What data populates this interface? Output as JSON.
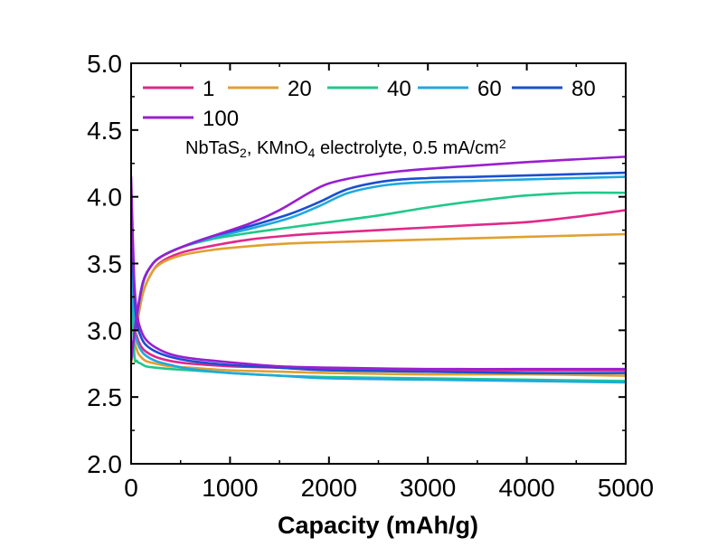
{
  "chart_data": {
    "type": "line",
    "title": "",
    "xlabel": "Capacity (mAh/g)",
    "ylabel": "",
    "xlim": [
      0,
      5000
    ],
    "ylim": [
      2.0,
      5.0
    ],
    "xticks": [
      0,
      1000,
      2000,
      3000,
      4000,
      5000
    ],
    "xtick_labels": [
      "0",
      "1000",
      "2000",
      "3000",
      "4000",
      "5000"
    ],
    "yticks": [
      2.0,
      2.5,
      3.0,
      3.5,
      4.0,
      4.5,
      5.0
    ],
    "ytick_labels": [
      "2.0",
      "2.5",
      "3.0",
      "3.5",
      "4.0",
      "4.5",
      "5.0"
    ],
    "grid": false,
    "legend_position": "top-left",
    "annotation": {
      "parts": [
        {
          "text": "NbTaS",
          "sub": false
        },
        {
          "text": "2",
          "sub": true
        },
        {
          "text": ", KMnO",
          "sub": false
        },
        {
          "text": "4",
          "sub": true
        },
        {
          "text": " electrolyte, 0.5 mA/cm",
          "sub": false
        },
        {
          "text": "2",
          "sup": true
        }
      ]
    },
    "series": [
      {
        "name": "1",
        "color": "#e0288a",
        "charge": {
          "x": [
            0,
            60,
            120,
            200,
            300,
            500,
            800,
            1200,
            1600,
            2000,
            2500,
            3000,
            3500,
            4000,
            4500,
            5000
          ],
          "y": [
            2.78,
            3.05,
            3.28,
            3.42,
            3.51,
            3.58,
            3.63,
            3.68,
            3.71,
            3.73,
            3.75,
            3.77,
            3.79,
            3.81,
            3.85,
            3.9
          ]
        },
        "discharge": {
          "x": [
            0,
            30,
            60,
            100,
            150,
            250,
            400,
            600,
            1000,
            1500,
            2000,
            3000,
            4000,
            5000
          ],
          "y": [
            3.75,
            3.1,
            2.95,
            2.88,
            2.84,
            2.8,
            2.77,
            2.75,
            2.73,
            2.72,
            2.71,
            2.7,
            2.7,
            2.7
          ]
        }
      },
      {
        "name": "20",
        "color": "#e0a030",
        "charge": {
          "x": [
            0,
            60,
            120,
            200,
            300,
            500,
            800,
            1200,
            1600,
            2000,
            2500,
            3000,
            3500,
            4000,
            4500,
            5000
          ],
          "y": [
            2.75,
            3.05,
            3.28,
            3.42,
            3.5,
            3.56,
            3.6,
            3.63,
            3.65,
            3.66,
            3.67,
            3.68,
            3.69,
            3.7,
            3.71,
            3.72
          ]
        },
        "discharge": {
          "x": [
            0,
            30,
            60,
            100,
            150,
            250,
            400,
            600,
            1000,
            1500,
            2000,
            3000,
            4000,
            5000
          ],
          "y": [
            3.7,
            3.0,
            2.85,
            2.8,
            2.77,
            2.75,
            2.73,
            2.72,
            2.7,
            2.69,
            2.68,
            2.67,
            2.67,
            2.66
          ]
        }
      },
      {
        "name": "40",
        "color": "#20c88a",
        "charge": {
          "x": [
            0,
            60,
            120,
            200,
            300,
            500,
            800,
            1200,
            1600,
            2000,
            2500,
            3000,
            3500,
            4000,
            4500,
            5000
          ],
          "y": [
            2.78,
            3.1,
            3.35,
            3.48,
            3.55,
            3.62,
            3.68,
            3.73,
            3.77,
            3.81,
            3.86,
            3.92,
            3.97,
            4.01,
            4.03,
            4.03
          ]
        },
        "discharge": {
          "x": [
            0,
            30,
            60,
            100,
            150,
            250,
            400,
            600,
            1000,
            1500,
            2000,
            3000,
            4000,
            5000
          ],
          "y": [
            3.6,
            2.85,
            2.77,
            2.75,
            2.73,
            2.72,
            2.71,
            2.7,
            2.68,
            2.66,
            2.65,
            2.64,
            2.63,
            2.62
          ]
        }
      },
      {
        "name": "60",
        "color": "#20a8e0",
        "charge": {
          "x": [
            0,
            60,
            120,
            200,
            300,
            500,
            800,
            1200,
            1600,
            1900,
            2200,
            2600,
            3000,
            3500,
            4000,
            5000
          ],
          "y": [
            2.78,
            3.12,
            3.36,
            3.48,
            3.55,
            3.62,
            3.69,
            3.76,
            3.84,
            3.93,
            4.03,
            4.09,
            4.11,
            4.12,
            4.13,
            4.15
          ]
        },
        "discharge": {
          "x": [
            0,
            30,
            60,
            100,
            150,
            250,
            400,
            600,
            1000,
            1500,
            2000,
            3000,
            4000,
            5000
          ],
          "y": [
            3.7,
            3.05,
            2.92,
            2.85,
            2.81,
            2.77,
            2.74,
            2.71,
            2.68,
            2.66,
            2.64,
            2.63,
            2.62,
            2.61
          ]
        }
      },
      {
        "name": "80",
        "color": "#1a4fd0",
        "charge": {
          "x": [
            0,
            60,
            120,
            200,
            300,
            500,
            800,
            1200,
            1600,
            1900,
            2200,
            2600,
            3000,
            3500,
            4000,
            5000
          ],
          "y": [
            2.78,
            3.12,
            3.36,
            3.48,
            3.55,
            3.62,
            3.7,
            3.78,
            3.87,
            3.96,
            4.06,
            4.12,
            4.14,
            4.15,
            4.16,
            4.18
          ]
        },
        "discharge": {
          "x": [
            0,
            30,
            60,
            100,
            150,
            250,
            400,
            600,
            1000,
            1500,
            2000,
            3000,
            4000,
            5000
          ],
          "y": [
            3.9,
            3.3,
            3.05,
            2.95,
            2.89,
            2.84,
            2.8,
            2.77,
            2.74,
            2.72,
            2.7,
            2.69,
            2.68,
            2.68
          ]
        }
      },
      {
        "name": "100",
        "color": "#9a1ed0",
        "charge": {
          "x": [
            0,
            60,
            120,
            200,
            300,
            500,
            800,
            1200,
            1500,
            1800,
            2000,
            2300,
            2700,
            3200,
            4000,
            5000
          ],
          "y": [
            2.78,
            3.12,
            3.36,
            3.48,
            3.55,
            3.62,
            3.7,
            3.8,
            3.9,
            4.03,
            4.1,
            4.15,
            4.19,
            4.22,
            4.26,
            4.3
          ]
        },
        "discharge": {
          "x": [
            0,
            30,
            60,
            100,
            150,
            250,
            400,
            600,
            1000,
            1500,
            2000,
            3000,
            4000,
            5000
          ],
          "y": [
            4.15,
            3.4,
            3.12,
            3.0,
            2.93,
            2.87,
            2.82,
            2.79,
            2.76,
            2.73,
            2.72,
            2.71,
            2.71,
            2.71
          ]
        }
      }
    ]
  }
}
